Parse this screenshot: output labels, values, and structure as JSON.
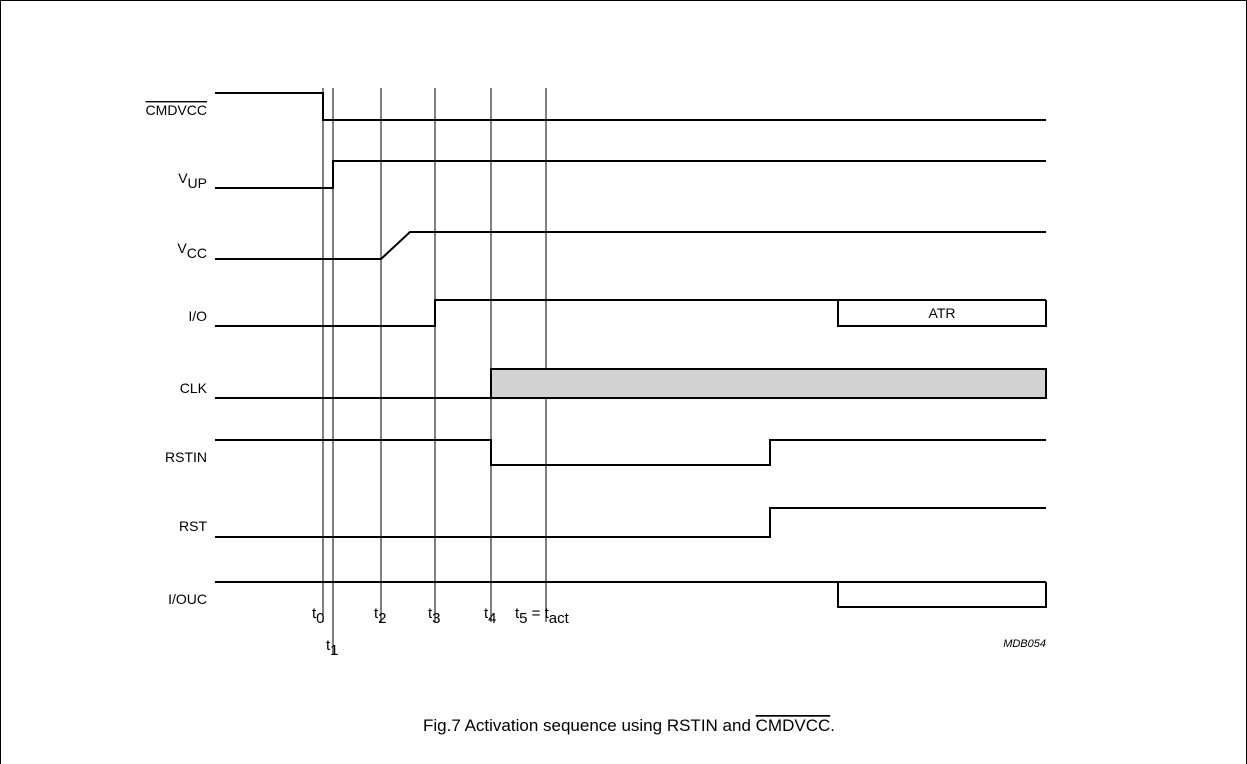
{
  "signals": [
    {
      "id": "cmdvcc",
      "label": "CMDVCC",
      "overbar": true
    },
    {
      "id": "vup",
      "label": "V",
      "sub": "UP"
    },
    {
      "id": "vcc",
      "label": "V",
      "sub": "CC"
    },
    {
      "id": "io",
      "label": "I/O"
    },
    {
      "id": "clk",
      "label": "CLK"
    },
    {
      "id": "rstin",
      "label": "RSTIN"
    },
    {
      "id": "rst",
      "label": "RST"
    },
    {
      "id": "iouc",
      "label": "I/OUC"
    }
  ],
  "time_markers": [
    {
      "id": "t0",
      "base": "t",
      "sub": "0"
    },
    {
      "id": "t1",
      "base": "t",
      "sub": "1"
    },
    {
      "id": "t2",
      "base": "t",
      "sub": "2"
    },
    {
      "id": "t3",
      "base": "t",
      "sub": "3"
    },
    {
      "id": "t4",
      "base": "t",
      "sub": "4"
    },
    {
      "id": "t5",
      "base": "t",
      "sub": "5",
      "extra": " = t",
      "extra_sub": "act"
    }
  ],
  "annotations": {
    "atr": "ATR"
  },
  "reference": "MDB054",
  "caption": {
    "prefix": "Fig.7  Activation sequence using RSTIN and ",
    "overbar_text": "CMDVCC",
    "suffix": "."
  },
  "colors": {
    "clk_fill": "#d3d3d3",
    "line": "#000000"
  }
}
